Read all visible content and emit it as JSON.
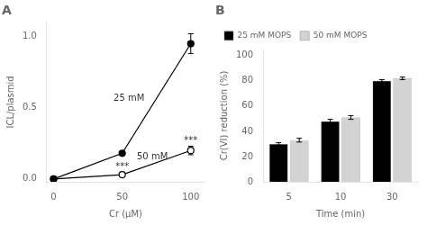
{
  "chart_data": [
    {
      "type": "line",
      "title": "A",
      "xlabel": "Cr (μM)",
      "ylabel": "ICL/plasmid",
      "x": [
        0,
        50,
        100
      ],
      "series": [
        {
          "color": "#000000",
          "marker": "circle",
          "values": [
            0,
            0.18,
            0.95
          ],
          "yerr": [
            0,
            0,
            0.07
          ]
        },
        {
          "color": "#000000",
          "marker": "open_circle",
          "values": [
            0,
            0.03,
            0.2
          ],
          "yerr": [
            0,
            0,
            0.03
          ]
        }
      ],
      "xlim": [
        -5,
        110
      ],
      "ylim": [
        -0.02,
        1.1
      ],
      "xticks": [
        0,
        50,
        100
      ],
      "yticks": [
        {
          "value": 0,
          "label": "0.0"
        },
        {
          "value": 0.5,
          "label": "0.5"
        },
        {
          "value": 1,
          "label": "1.0"
        }
      ],
      "grid": false,
      "annotations": [
        {
          "text": "25 mM",
          "x": 55,
          "y": 0.55
        },
        {
          "text": "50 mM",
          "x": 72,
          "y": 0.14
        },
        {
          "text": "***",
          "x": 50,
          "y": 0.07
        },
        {
          "text": "***",
          "x": 100,
          "y": 0.25
        }
      ]
    },
    {
      "type": "bar",
      "title": "B",
      "xlabel": "Time (min)",
      "ylabel": "Cr(VI) reduction (%)",
      "categories": [
        "5",
        "10",
        "30"
      ],
      "series": [
        {
          "name": "25 mM MOPS",
          "color": "#000000",
          "values": [
            30,
            48,
            80
          ],
          "yerr": [
            1.0,
            1.5,
            1.0
          ]
        },
        {
          "name": "50 mM MOPS",
          "color": "#d3d3d3",
          "values": [
            33,
            51,
            82
          ],
          "yerr": [
            1.5,
            1.5,
            1.0
          ]
        }
      ],
      "ylim": [
        0,
        105
      ],
      "yticks": [
        0,
        20,
        40,
        60,
        80,
        100
      ],
      "grid": false,
      "legend": "upper left"
    }
  ]
}
